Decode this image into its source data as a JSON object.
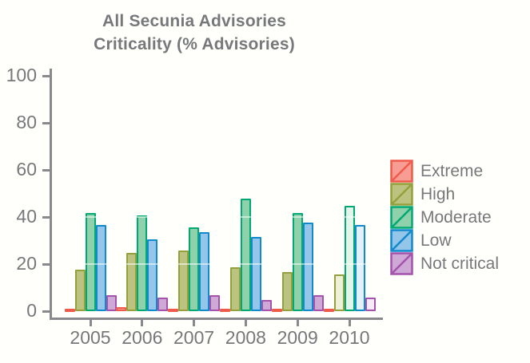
{
  "title": {
    "line1": "All Secunia Advisories",
    "line2": "Criticality (% Advisories)"
  },
  "chart_data": {
    "type": "bar",
    "title": "All Secunia Advisories Criticality (% Advisories)",
    "categories": [
      "2005",
      "2006",
      "2007",
      "2008",
      "2009",
      "2010"
    ],
    "series": [
      {
        "name": "Extreme",
        "values": [
          0.5,
          1,
          0.5,
          0.5,
          0.5,
          0.5
        ],
        "fill": "#f79d94",
        "stroke": "#ef5a4b",
        "fill_pale": "#fbdeda"
      },
      {
        "name": "High",
        "values": [
          17,
          24,
          25,
          18,
          16,
          15
        ],
        "fill": "#bcc380",
        "stroke": "#93a03c",
        "fill_pale": "#eff0da"
      },
      {
        "name": "Moderate",
        "values": [
          41,
          40,
          35,
          47,
          41,
          44
        ],
        "fill": "#8ed1ab",
        "stroke": "#00a973",
        "fill_pale": "#e3f4ea",
        "striped": true
      },
      {
        "name": "Low",
        "values": [
          36,
          30,
          33,
          31,
          37,
          36
        ],
        "fill": "#93c6e9",
        "stroke": "#1189cd",
        "fill_pale": "#e4f1fb"
      },
      {
        "name": "Not critical",
        "values": [
          6,
          5,
          6,
          4,
          6,
          5
        ],
        "fill": "#cea9d6",
        "stroke": "#a452ab",
        "fill_pale": "#f5eaf6"
      }
    ],
    "xlabel": "",
    "ylabel": "",
    "ylim": [
      0,
      100
    ],
    "yticks": [
      "0",
      "20",
      "40",
      "60",
      "80",
      "100"
    ],
    "grid": "white overlay lines at 20/40/60/80 visible across bars",
    "legend_position": "right",
    "legend_labels": [
      "Extreme",
      "High",
      "Moderate",
      "Low",
      "Not critical"
    ],
    "notes": "2010 bars drawn with pale fills (partial year)",
    "axis_color": "#87898c",
    "text_color": "#77787b"
  }
}
